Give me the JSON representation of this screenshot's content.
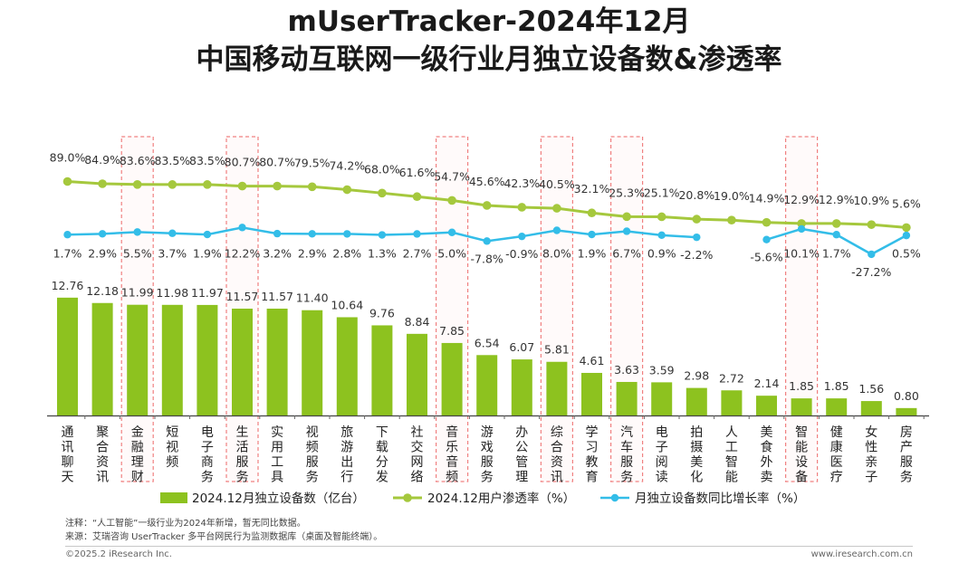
{
  "title_line1": "mUserTracker-2024年12月",
  "title_line2": "中国移动互联网一级行业月独立设备数&渗透率",
  "note": "注释：“人工智能”一级行业为2024年新增，暂无同比数据。",
  "source": "来源：艾瑞咨询 UserTracker 多平台网民行为监测数据库（桌面及智能终端）。",
  "copyright": "©2025.2 iResearch Inc.",
  "website": "www.iresearch.com.cn",
  "colors": {
    "bar": "#8dc21f",
    "penetration_line": "#a5c83d",
    "growth_line": "#33bde8",
    "highlight_box": "#f08080"
  },
  "chart_data": {
    "type": "bar",
    "categories": [
      "通讯聊天",
      "聚合资讯",
      "金融理财",
      "短视频",
      "电子商务",
      "生活服务",
      "实用工具",
      "视频服务",
      "旅游出行",
      "下载分发",
      "社交网络",
      "音乐音频",
      "游戏服务",
      "办公管理",
      "综合资讯",
      "学习教育",
      "汽车服务",
      "电子阅读",
      "拍摄美化",
      "人工智能",
      "美食外卖",
      "智能设备",
      "健康医疗",
      "女性亲子",
      "房产服务"
    ],
    "highlighted_categories": [
      "金融理财",
      "生活服务",
      "音乐音频",
      "综合资讯",
      "汽车服务",
      "智能设备"
    ],
    "series": [
      {
        "name": "2024.12月独立设备数（亿台）",
        "type": "bar",
        "values": [
          12.76,
          12.18,
          11.99,
          11.98,
          11.97,
          11.57,
          11.57,
          11.4,
          10.64,
          9.76,
          8.84,
          7.85,
          6.54,
          6.07,
          5.81,
          4.61,
          3.63,
          3.59,
          2.98,
          2.72,
          2.14,
          1.85,
          1.85,
          1.56,
          0.8
        ],
        "labels": [
          "12.76",
          "12.18",
          "11.99",
          "11.98",
          "11.97",
          "11.57",
          "11.57",
          "11.40",
          "10.64",
          "9.76",
          "8.84",
          "7.85",
          "6.54",
          "6.07",
          "5.81",
          "4.61",
          "3.63",
          "3.59",
          "2.98",
          "2.72",
          "2.14",
          "1.85",
          "1.85",
          "1.56",
          "0.80"
        ]
      },
      {
        "name": "2024.12用户渗透率（%）",
        "type": "line",
        "values": [
          89.0,
          84.9,
          83.6,
          83.5,
          83.5,
          80.7,
          80.7,
          79.5,
          74.2,
          68.0,
          61.6,
          54.7,
          45.6,
          42.3,
          40.5,
          32.1,
          25.3,
          25.1,
          20.8,
          19.0,
          14.9,
          12.9,
          12.9,
          10.9,
          5.6
        ],
        "labels": [
          "89.0%",
          "84.9%",
          "83.6%",
          "83.5%",
          "83.5%",
          "80.7%",
          "80.7%",
          "79.5%",
          "74.2%",
          "68.0%",
          "61.6%",
          "54.7%",
          "45.6%",
          "42.3%",
          "40.5%",
          "32.1%",
          "25.3%",
          "25.1%",
          "20.8%",
          "19.0%",
          "14.9%",
          "12.9%",
          "12.9%",
          "10.9%",
          "5.6%"
        ]
      },
      {
        "name": "月独立设备数同比增长率（%）",
        "type": "line",
        "values": [
          1.7,
          2.9,
          5.5,
          3.7,
          1.9,
          12.2,
          3.2,
          2.9,
          2.8,
          1.3,
          2.7,
          5.0,
          -7.8,
          -0.9,
          8.0,
          1.9,
          6.7,
          0.9,
          -2.2,
          null,
          -5.6,
          10.1,
          1.7,
          -27.2,
          0.5
        ],
        "labels": [
          "1.7%",
          "2.9%",
          "5.5%",
          "3.7%",
          "1.9%",
          "12.2%",
          "3.2%",
          "2.9%",
          "2.8%",
          "1.3%",
          "2.7%",
          "5.0%",
          "-7.8%",
          "-0.9%",
          "8.0%",
          "1.9%",
          "6.7%",
          "0.9%",
          "-2.2%",
          "",
          "-5.6%",
          "10.1%",
          "1.7%",
          "-27.2%",
          "0.5%"
        ]
      }
    ],
    "legend_position": "bottom",
    "grid": false
  }
}
